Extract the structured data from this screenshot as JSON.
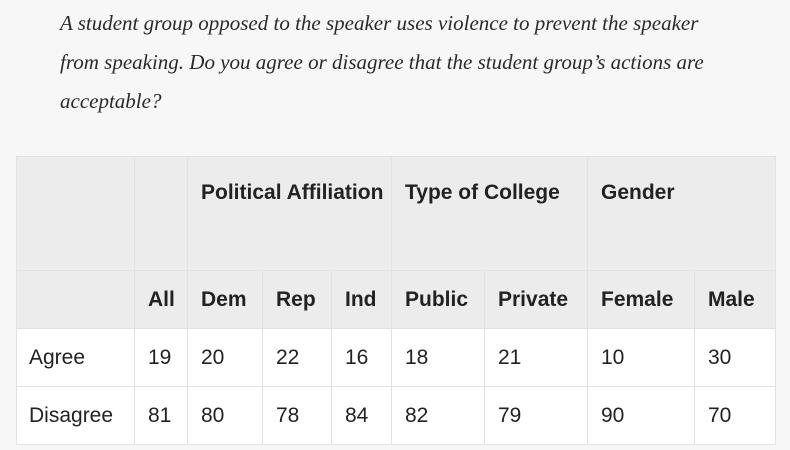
{
  "question": "A student group opposed to the speaker uses violence to prevent the speaker from speaking. Do you agree or disagree that the student group’s actions are acceptable?",
  "table": {
    "groups": {
      "political": "Political Affiliation",
      "college": "Type of College",
      "gender": "Gender"
    },
    "columns": [
      "All",
      "Dem",
      "Rep",
      "Ind",
      "Public",
      "Private",
      "Female",
      "Male"
    ],
    "rows": [
      {
        "label": "Agree",
        "values": [
          "19",
          "20",
          "22",
          "16",
          "18",
          "21",
          "10",
          "30"
        ]
      },
      {
        "label": "Disagree",
        "values": [
          "81",
          "80",
          "78",
          "84",
          "82",
          "79",
          "90",
          "70"
        ]
      }
    ]
  }
}
